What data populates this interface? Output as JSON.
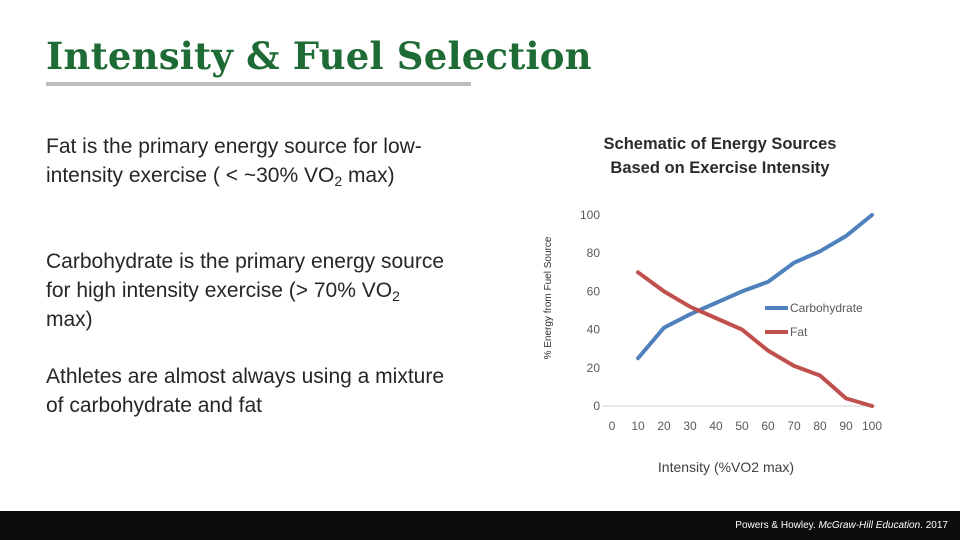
{
  "slide": {
    "title": "Intensity & Fuel Selection"
  },
  "bullets": [
    {
      "before": "Fat is the primary energy source for low-intensity exercise ( < ~30% VO",
      "sub": "2",
      "after": " max)"
    },
    {
      "before": "Carbohydrate is the primary energy source for high intensity exercise (> 70% VO",
      "sub": "2",
      "after": " max)"
    },
    {
      "before": "Athletes are almost always using a mixture of carbohydrate and fat",
      "sub": "",
      "after": ""
    }
  ],
  "chart_title_line1": "Schematic of Energy Sources",
  "chart_title_line2": "Based on Exercise Intensity",
  "footer": {
    "authors": "Powers & Howley.",
    "publisher": "McGraw-Hill Education",
    "year": ". 2017"
  },
  "chart_data": {
    "type": "line",
    "xlabel": "Intensity (%VO2 max)",
    "ylabel": "% Energy from Fuel Source",
    "x_ticks": [
      0,
      10,
      20,
      30,
      40,
      50,
      60,
      70,
      80,
      90,
      100
    ],
    "y_ticks": [
      0,
      20,
      40,
      60,
      80,
      100
    ],
    "xlim": [
      0,
      100
    ],
    "ylim": [
      0,
      100
    ],
    "grid": false,
    "legend_position": "right",
    "series": [
      {
        "name": "Carbohydrate",
        "color": "#4f81bd",
        "x": [
          10,
          20,
          30,
          40,
          50,
          60,
          70,
          80,
          90,
          100
        ],
        "y": [
          25,
          41,
          48,
          54,
          60,
          65,
          75,
          81,
          89,
          100
        ]
      },
      {
        "name": "Fat",
        "color": "#c0504d",
        "x": [
          10,
          20,
          30,
          40,
          50,
          60,
          70,
          80,
          90,
          100
        ],
        "y": [
          70,
          60,
          52,
          46,
          40,
          29,
          21,
          16,
          4,
          0
        ]
      }
    ]
  }
}
